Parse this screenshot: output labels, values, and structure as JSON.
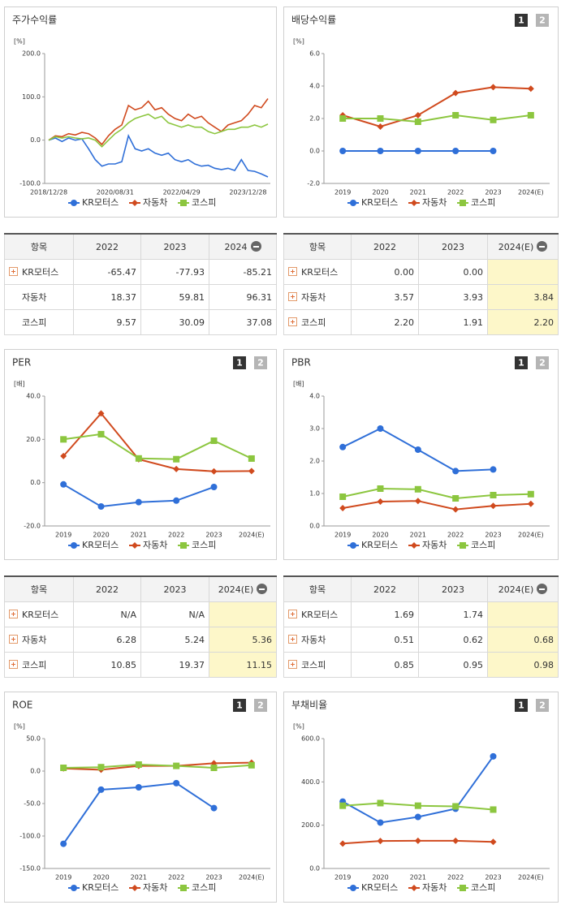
{
  "chart_data": [
    {
      "type": "line",
      "title": "주가수익률",
      "unit": "[%]",
      "markers": false,
      "categories": [
        "2018/12/28",
        null,
        null,
        null,
        null,
        null,
        null,
        null,
        null,
        null,
        "2020/08/31",
        null,
        null,
        null,
        null,
        null,
        null,
        null,
        null,
        null,
        "2022/04/29",
        null,
        null,
        null,
        null,
        null,
        null,
        null,
        null,
        null,
        "2023/12/28",
        null,
        null,
        null
      ],
      "ylim": [
        -100,
        200
      ],
      "yticks": [
        {
          "value": 200,
          "label": "200.0"
        },
        {
          "value": 100,
          "label": "100.0"
        },
        {
          "value": 0,
          "label": "0.0"
        },
        {
          "value": -100,
          "label": "-100.0"
        }
      ],
      "series": [
        {
          "name": "KR모터스",
          "color": "#2f6fd8",
          "values": [
            0,
            5,
            -3,
            5,
            0,
            3,
            -20,
            -45,
            -60,
            -55,
            -55,
            -50,
            10,
            -20,
            -25,
            -20,
            -30,
            -35,
            -30,
            -45,
            -50,
            -45,
            -55,
            -60,
            -58,
            -65,
            -68,
            -65,
            -70,
            -45,
            -70,
            -72,
            -78,
            -85
          ]
        },
        {
          "name": "자동차",
          "color": "#d04a1e",
          "values": [
            0,
            10,
            8,
            15,
            12,
            18,
            15,
            5,
            -10,
            10,
            25,
            35,
            80,
            70,
            75,
            90,
            70,
            75,
            60,
            50,
            45,
            60,
            50,
            55,
            40,
            30,
            20,
            35,
            40,
            45,
            60,
            80,
            75,
            96
          ]
        },
        {
          "name": "코스피",
          "color": "#8cc63f",
          "values": [
            0,
            8,
            5,
            8,
            5,
            3,
            5,
            0,
            -15,
            0,
            15,
            25,
            40,
            50,
            55,
            60,
            50,
            55,
            40,
            35,
            30,
            35,
            30,
            30,
            20,
            15,
            20,
            25,
            25,
            30,
            30,
            35,
            30,
            37
          ]
        }
      ]
    },
    {
      "type": "line",
      "title": "배당수익률",
      "buttons": [
        "1",
        "2"
      ],
      "unit": "[%]",
      "markers": true,
      "categories": [
        "2019",
        "2020",
        "2021",
        "2022",
        "2023",
        "2024(E)"
      ],
      "ylim": [
        -2,
        6
      ],
      "yticks": [
        {
          "value": 6,
          "label": "6.0"
        },
        {
          "value": 4,
          "label": "4.0"
        },
        {
          "value": 2,
          "label": "2.0"
        },
        {
          "value": 0,
          "label": "0.0"
        },
        {
          "value": -2,
          "label": "-2.0"
        }
      ],
      "series": [
        {
          "name": "KR모터스",
          "color": "#2f6fd8",
          "values": [
            0,
            0,
            0,
            0,
            0,
            null
          ]
        },
        {
          "name": "자동차",
          "color": "#d04a1e",
          "values": [
            2.2,
            1.5,
            2.2,
            3.57,
            3.93,
            3.84
          ]
        },
        {
          "name": "코스피",
          "color": "#8cc63f",
          "values": [
            2.0,
            2.0,
            1.8,
            2.2,
            1.91,
            2.2
          ]
        }
      ]
    },
    {
      "type": "line",
      "title": "PER",
      "buttons": [
        "1",
        "2"
      ],
      "unit": "[배]",
      "markers": true,
      "categories": [
        "2019",
        "2020",
        "2021",
        "2022",
        "2023",
        "2024(E)"
      ],
      "ylim": [
        -20,
        40
      ],
      "yticks": [
        {
          "value": 40,
          "label": "40.0"
        },
        {
          "value": 20,
          "label": "20.0"
        },
        {
          "value": 0,
          "label": "0.0"
        },
        {
          "value": -20,
          "label": "-20.0"
        }
      ],
      "series": [
        {
          "name": "KR모터스",
          "color": "#2f6fd8",
          "values": [
            -0.8,
            -11,
            -9,
            -8.3,
            -2,
            null
          ]
        },
        {
          "name": "자동차",
          "color": "#d04a1e",
          "values": [
            12.3,
            32,
            10.8,
            6.28,
            5.24,
            5.36
          ]
        },
        {
          "name": "코스피",
          "color": "#8cc63f",
          "values": [
            20,
            22.4,
            11.2,
            10.85,
            19.37,
            11.15
          ]
        }
      ]
    },
    {
      "type": "line",
      "title": "PBR",
      "buttons": [
        "1",
        "2"
      ],
      "unit": "[배]",
      "markers": true,
      "categories": [
        "2019",
        "2020",
        "2021",
        "2022",
        "2023",
        "2024(E)"
      ],
      "ylim": [
        0,
        4
      ],
      "yticks": [
        {
          "value": 4,
          "label": "4.0"
        },
        {
          "value": 3,
          "label": "3.0"
        },
        {
          "value": 2,
          "label": "2.0"
        },
        {
          "value": 1,
          "label": "1.0"
        },
        {
          "value": 0,
          "label": "0.0"
        }
      ],
      "series": [
        {
          "name": "KR모터스",
          "color": "#2f6fd8",
          "values": [
            2.43,
            3.0,
            2.35,
            1.69,
            1.74,
            null
          ]
        },
        {
          "name": "자동차",
          "color": "#d04a1e",
          "values": [
            0.55,
            0.75,
            0.77,
            0.51,
            0.62,
            0.68
          ]
        },
        {
          "name": "코스피",
          "color": "#8cc63f",
          "values": [
            0.9,
            1.15,
            1.13,
            0.85,
            0.95,
            0.98
          ]
        }
      ]
    },
    {
      "type": "line",
      "title": "ROE",
      "buttons": [
        "1",
        "2"
      ],
      "unit": "[%]",
      "markers": true,
      "categories": [
        "2019",
        "2020",
        "2021",
        "2022",
        "2023",
        "2024(E)"
      ],
      "ylim": [
        -150,
        50
      ],
      "yticks": [
        {
          "value": 50,
          "label": "50.0"
        },
        {
          "value": 0,
          "label": "0.0"
        },
        {
          "value": -50,
          "label": "-50.0"
        },
        {
          "value": -100,
          "label": "-100.0"
        },
        {
          "value": -150,
          "label": "-150.0"
        }
      ],
      "series": [
        {
          "name": "KR모터스",
          "color": "#2f6fd8",
          "values": [
            -112,
            -28.6,
            -25,
            -18.6,
            -57,
            null
          ]
        },
        {
          "name": "자동차",
          "color": "#d04a1e",
          "values": [
            4,
            2,
            8,
            8,
            12,
            13
          ]
        },
        {
          "name": "코스피",
          "color": "#8cc63f",
          "values": [
            5,
            6,
            10,
            8,
            5,
            9
          ]
        }
      ]
    },
    {
      "type": "line",
      "title": "부채비율",
      "buttons": [
        "1",
        "2"
      ],
      "unit": "[%]",
      "markers": true,
      "categories": [
        "2019",
        "2020",
        "2021",
        "2022",
        "2023",
        "2024(E)"
      ],
      "ylim": [
        0,
        600
      ],
      "yticks": [
        {
          "value": 600,
          "label": "600.0"
        },
        {
          "value": 400,
          "label": "400.0"
        },
        {
          "value": 200,
          "label": "200.0"
        },
        {
          "value": 0,
          "label": "0.0"
        }
      ],
      "series": [
        {
          "name": "KR모터스",
          "color": "#2f6fd8",
          "values": [
            309,
            212,
            238,
            276,
            518,
            null
          ]
        },
        {
          "name": "자동차",
          "color": "#d04a1e",
          "values": [
            115,
            127,
            128,
            128,
            123,
            null
          ]
        },
        {
          "name": "코스피",
          "color": "#8cc63f",
          "values": [
            290,
            302,
            290,
            287,
            272,
            null
          ]
        }
      ]
    }
  ],
  "tables": [
    {
      "header": [
        "항목",
        "2022",
        "2023",
        "2024"
      ],
      "rows": [
        [
          "KR모터스",
          "-65.47",
          "-77.93",
          "-85.21"
        ],
        [
          "자동차",
          "18.37",
          "59.81",
          "96.31"
        ],
        [
          "코스피",
          "9.57",
          "30.09",
          "37.08"
        ]
      ]
    },
    {
      "header": [
        "항목",
        "2022",
        "2023",
        "2024(E)"
      ],
      "rows": [
        [
          "KR모터스",
          "0.00",
          "0.00",
          ""
        ],
        [
          "자동차",
          "3.57",
          "3.93",
          "3.84"
        ],
        [
          "코스피",
          "2.20",
          "1.91",
          "2.20"
        ]
      ]
    },
    {
      "header": [
        "항목",
        "2022",
        "2023",
        "2024(E)"
      ],
      "rows": [
        [
          "KR모터스",
          "N/A",
          "N/A",
          ""
        ],
        [
          "자동차",
          "6.28",
          "5.24",
          "5.36"
        ],
        [
          "코스피",
          "10.85",
          "19.37",
          "11.15"
        ]
      ]
    },
    {
      "header": [
        "항목",
        "2022",
        "2023",
        "2024(E)"
      ],
      "rows": [
        [
          "KR모터스",
          "1.69",
          "1.74",
          ""
        ],
        [
          "자동차",
          "0.51",
          "0.62",
          "0.68"
        ],
        [
          "코스피",
          "0.85",
          "0.95",
          "0.98"
        ]
      ]
    }
  ]
}
